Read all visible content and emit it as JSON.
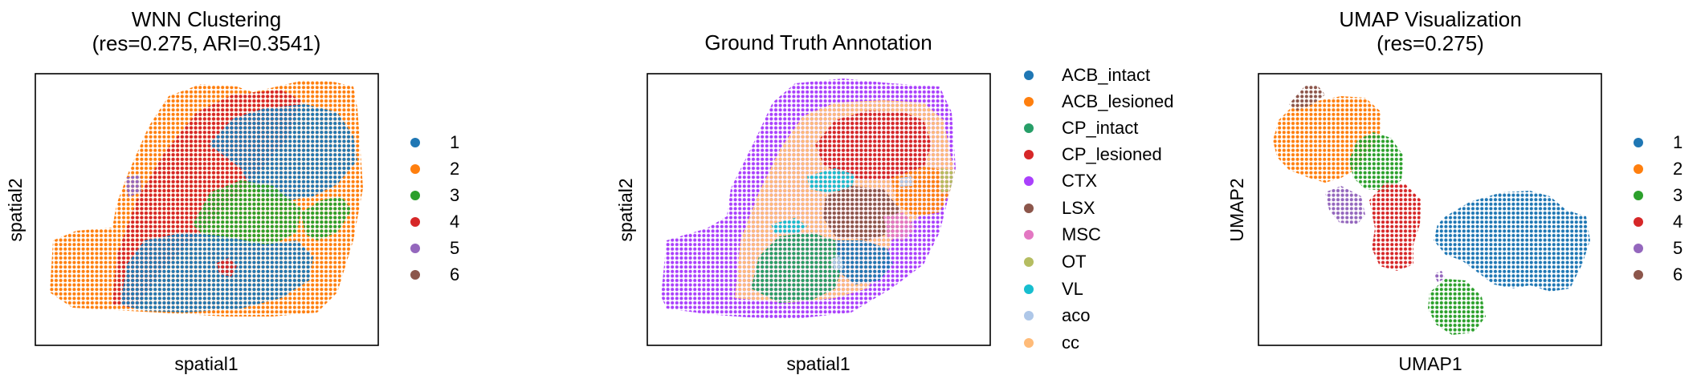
{
  "figure": {
    "panels": [
      {
        "title_lines": [
          "WNN Clustering",
          "(res=0.275, ARI=0.3541)"
        ],
        "xlabel": "spatial1",
        "ylabel": "spatial2"
      },
      {
        "title_lines": [
          "Ground Truth Annotation"
        ],
        "xlabel": "spatial1",
        "ylabel": "spatial2"
      },
      {
        "title_lines": [
          "UMAP Visualization",
          "(res=0.275)"
        ],
        "xlabel": "UMAP1",
        "ylabel": "UMAP2"
      }
    ]
  },
  "chart_data": [
    {
      "type": "scatter",
      "title": "WNN Clustering (res=0.275, ARI=0.3541)",
      "xlabel": "spatial1",
      "ylabel": "spatial2",
      "grid": false,
      "ticks": false,
      "legend_position": "right",
      "legend": [
        {
          "label": "1",
          "color": "#1f77b4"
        },
        {
          "label": "2",
          "color": "#ff7f0e"
        },
        {
          "label": "3",
          "color": "#2ca02c"
        },
        {
          "label": "4",
          "color": "#d62728"
        },
        {
          "label": "5",
          "color": "#9467bd"
        },
        {
          "label": "6",
          "color": "#8c564b"
        }
      ]
    },
    {
      "type": "scatter",
      "title": "Ground Truth Annotation",
      "xlabel": "spatial1",
      "ylabel": "spatial2",
      "grid": false,
      "ticks": false,
      "legend_position": "right",
      "legend": [
        {
          "label": "ACB_intact",
          "color": "#1f77b4"
        },
        {
          "label": "ACB_lesioned",
          "color": "#ff7f0e"
        },
        {
          "label": "CP_intact",
          "color": "#279e68"
        },
        {
          "label": "CP_lesioned",
          "color": "#d62728"
        },
        {
          "label": "CTX",
          "color": "#aa40fc"
        },
        {
          "label": "LSX",
          "color": "#8c564b"
        },
        {
          "label": "MSC",
          "color": "#e377c2"
        },
        {
          "label": "OT",
          "color": "#b5bd61"
        },
        {
          "label": "VL",
          "color": "#17becf"
        },
        {
          "label": "aco",
          "color": "#aec7e8"
        },
        {
          "label": "cc",
          "color": "#ffbb78"
        }
      ]
    },
    {
      "type": "scatter",
      "title": "UMAP Visualization (res=0.275)",
      "xlabel": "UMAP1",
      "ylabel": "UMAP2",
      "grid": false,
      "ticks": false,
      "legend_position": "right",
      "legend": [
        {
          "label": "1",
          "color": "#1f77b4"
        },
        {
          "label": "2",
          "color": "#ff7f0e"
        },
        {
          "label": "3",
          "color": "#2ca02c"
        },
        {
          "label": "4",
          "color": "#d62728"
        },
        {
          "label": "5",
          "color": "#9467bd"
        },
        {
          "label": "6",
          "color": "#8c564b"
        }
      ]
    }
  ]
}
